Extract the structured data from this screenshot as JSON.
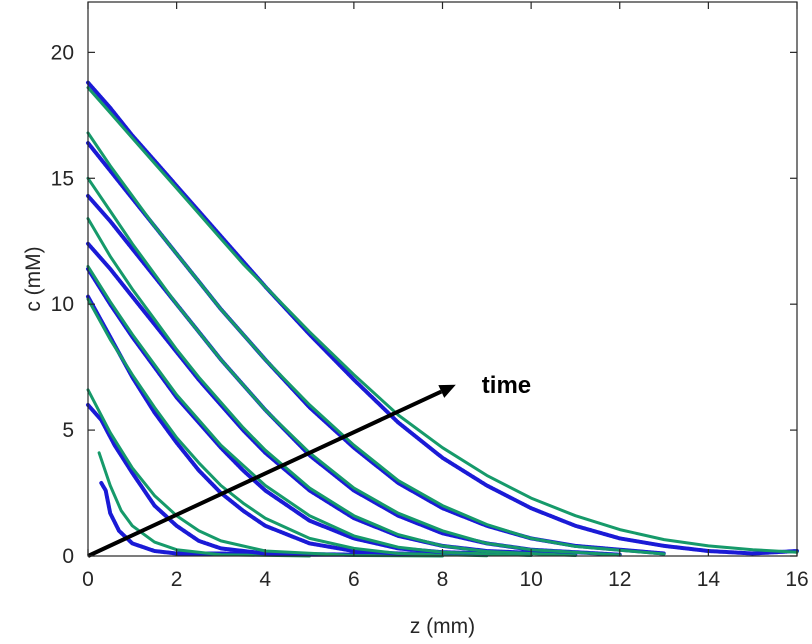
{
  "chart_data": {
    "type": "line",
    "title": "",
    "xlabel": "z  (mm)",
    "ylabel": "c  (mM)",
    "xlim": [
      0,
      16
    ],
    "ylim": [
      0,
      22
    ],
    "xticks": [
      0,
      2,
      4,
      6,
      8,
      10,
      12,
      14,
      16
    ],
    "yticks": [
      0,
      5,
      10,
      15,
      20
    ],
    "grid": false,
    "colors": {
      "data": "#1a1ad6",
      "fit": "#169a6a",
      "arrow": "#000000"
    },
    "annotation": {
      "text": "time",
      "arrow_from": [
        0,
        0
      ],
      "arrow_to": [
        8.3,
        6.8
      ]
    },
    "series": [
      {
        "kind": "data",
        "values": [
          [
            0.3,
            2.9
          ],
          [
            0.4,
            2.6
          ],
          [
            0.5,
            1.7
          ],
          [
            0.7,
            1.0
          ],
          [
            1.0,
            0.5
          ],
          [
            1.5,
            0.2
          ],
          [
            2.0,
            0.1
          ],
          [
            3.0,
            0.1
          ],
          [
            5.0,
            0.05
          ],
          [
            7.0,
            0.05
          ]
        ]
      },
      {
        "kind": "fit",
        "values": [
          [
            0.25,
            4.1
          ],
          [
            0.5,
            2.8
          ],
          [
            0.75,
            1.8
          ],
          [
            1.0,
            1.2
          ],
          [
            1.5,
            0.55
          ],
          [
            2.0,
            0.25
          ],
          [
            3.0,
            0.05
          ],
          [
            5.0,
            0.0
          ]
        ]
      },
      {
        "kind": "data",
        "values": [
          [
            0.0,
            6.0
          ],
          [
            0.3,
            5.4
          ],
          [
            0.6,
            4.4
          ],
          [
            1.0,
            3.3
          ],
          [
            1.5,
            2.0
          ],
          [
            2.0,
            1.2
          ],
          [
            2.5,
            0.6
          ],
          [
            3.0,
            0.3
          ],
          [
            4.0,
            0.1
          ],
          [
            6.0,
            0.05
          ],
          [
            8.0,
            0.05
          ]
        ]
      },
      {
        "kind": "fit",
        "values": [
          [
            0.0,
            6.6
          ],
          [
            0.5,
            4.9
          ],
          [
            1.0,
            3.5
          ],
          [
            1.5,
            2.4
          ],
          [
            2.0,
            1.6
          ],
          [
            2.5,
            1.0
          ],
          [
            3.0,
            0.6
          ],
          [
            4.0,
            0.2
          ],
          [
            6.0,
            0.02
          ],
          [
            8.0,
            0.0
          ]
        ]
      },
      {
        "kind": "data",
        "values": [
          [
            0.0,
            10.3
          ],
          [
            0.5,
            8.7
          ],
          [
            1.0,
            7.1
          ],
          [
            1.5,
            5.7
          ],
          [
            2.0,
            4.5
          ],
          [
            2.5,
            3.4
          ],
          [
            3.0,
            2.5
          ],
          [
            3.5,
            1.8
          ],
          [
            4.0,
            1.2
          ],
          [
            5.0,
            0.5
          ],
          [
            6.0,
            0.2
          ],
          [
            7.0,
            0.1
          ],
          [
            9.0,
            0.05
          ]
        ]
      },
      {
        "kind": "fit",
        "values": [
          [
            0.0,
            10.2
          ],
          [
            0.5,
            8.6
          ],
          [
            1.0,
            7.2
          ],
          [
            1.5,
            5.9
          ],
          [
            2.0,
            4.7
          ],
          [
            2.5,
            3.7
          ],
          [
            3.0,
            2.8
          ],
          [
            3.5,
            2.1
          ],
          [
            4.0,
            1.5
          ],
          [
            5.0,
            0.7
          ],
          [
            6.0,
            0.3
          ],
          [
            7.0,
            0.1
          ],
          [
            9.0,
            0.01
          ]
        ]
      },
      {
        "kind": "data",
        "values": [
          [
            0.0,
            11.4
          ],
          [
            0.5,
            10.0
          ],
          [
            1.0,
            8.7
          ],
          [
            1.5,
            7.5
          ],
          [
            2.0,
            6.3
          ],
          [
            2.5,
            5.3
          ],
          [
            3.0,
            4.3
          ],
          [
            3.5,
            3.4
          ],
          [
            4.0,
            2.6
          ],
          [
            5.0,
            1.4
          ],
          [
            6.0,
            0.7
          ],
          [
            7.0,
            0.3
          ],
          [
            8.0,
            0.15
          ],
          [
            10.0,
            0.05
          ]
        ]
      },
      {
        "kind": "fit",
        "values": [
          [
            0.0,
            11.5
          ],
          [
            0.5,
            10.1
          ],
          [
            1.0,
            8.8
          ],
          [
            1.5,
            7.6
          ],
          [
            2.0,
            6.4
          ],
          [
            2.5,
            5.4
          ],
          [
            3.0,
            4.4
          ],
          [
            3.5,
            3.6
          ],
          [
            4.0,
            2.8
          ],
          [
            5.0,
            1.6
          ],
          [
            6.0,
            0.8
          ],
          [
            7.0,
            0.35
          ],
          [
            8.0,
            0.15
          ],
          [
            10.0,
            0.02
          ]
        ]
      },
      {
        "kind": "data",
        "values": [
          [
            0.0,
            12.4
          ],
          [
            0.5,
            11.4
          ],
          [
            1.0,
            10.3
          ],
          [
            1.5,
            9.2
          ],
          [
            2.0,
            8.1
          ],
          [
            2.5,
            7.0
          ],
          [
            3.0,
            6.0
          ],
          [
            3.5,
            5.0
          ],
          [
            4.0,
            4.1
          ],
          [
            5.0,
            2.6
          ],
          [
            6.0,
            1.5
          ],
          [
            7.0,
            0.8
          ],
          [
            8.0,
            0.4
          ],
          [
            9.0,
            0.2
          ],
          [
            11.0,
            0.05
          ]
        ]
      },
      {
        "kind": "fit",
        "values": [
          [
            0.0,
            13.4
          ],
          [
            0.5,
            11.9
          ],
          [
            1.0,
            10.6
          ],
          [
            1.5,
            9.4
          ],
          [
            2.0,
            8.2
          ],
          [
            2.5,
            7.1
          ],
          [
            3.0,
            6.1
          ],
          [
            3.5,
            5.1
          ],
          [
            4.0,
            4.2
          ],
          [
            5.0,
            2.7
          ],
          [
            6.0,
            1.6
          ],
          [
            7.0,
            0.85
          ],
          [
            8.0,
            0.4
          ],
          [
            9.0,
            0.18
          ],
          [
            11.0,
            0.02
          ]
        ]
      },
      {
        "kind": "data",
        "values": [
          [
            0.0,
            14.3
          ],
          [
            0.5,
            13.3
          ],
          [
            1.0,
            12.2
          ],
          [
            1.5,
            11.1
          ],
          [
            2.0,
            10.0
          ],
          [
            2.5,
            8.9
          ],
          [
            3.0,
            7.8
          ],
          [
            3.5,
            6.8
          ],
          [
            4.0,
            5.8
          ],
          [
            5.0,
            4.0
          ],
          [
            6.0,
            2.6
          ],
          [
            7.0,
            1.6
          ],
          [
            8.0,
            0.9
          ],
          [
            9.0,
            0.5
          ],
          [
            10.0,
            0.25
          ],
          [
            12.0,
            0.05
          ]
        ]
      },
      {
        "kind": "fit",
        "values": [
          [
            0.0,
            15.0
          ],
          [
            0.5,
            13.7
          ],
          [
            1.0,
            12.4
          ],
          [
            1.5,
            11.2
          ],
          [
            2.0,
            10.0
          ],
          [
            2.5,
            8.9
          ],
          [
            3.0,
            7.8
          ],
          [
            3.5,
            6.8
          ],
          [
            4.0,
            5.8
          ],
          [
            5.0,
            4.1
          ],
          [
            6.0,
            2.7
          ],
          [
            7.0,
            1.7
          ],
          [
            8.0,
            1.0
          ],
          [
            9.0,
            0.5
          ],
          [
            10.0,
            0.25
          ],
          [
            12.0,
            0.04
          ]
        ]
      },
      {
        "kind": "data",
        "values": [
          [
            0.0,
            16.4
          ],
          [
            0.5,
            15.3
          ],
          [
            1.0,
            14.2
          ],
          [
            1.5,
            13.1
          ],
          [
            2.0,
            12.0
          ],
          [
            2.5,
            10.9
          ],
          [
            3.0,
            9.8
          ],
          [
            3.5,
            8.8
          ],
          [
            4.0,
            7.8
          ],
          [
            5.0,
            5.9
          ],
          [
            6.0,
            4.3
          ],
          [
            7.0,
            2.9
          ],
          [
            8.0,
            1.9
          ],
          [
            9.0,
            1.2
          ],
          [
            10.0,
            0.7
          ],
          [
            11.0,
            0.4
          ],
          [
            13.0,
            0.1
          ]
        ]
      },
      {
        "kind": "fit",
        "values": [
          [
            0.0,
            16.8
          ],
          [
            0.5,
            15.5
          ],
          [
            1.0,
            14.3
          ],
          [
            1.5,
            13.1
          ],
          [
            2.0,
            12.0
          ],
          [
            2.5,
            10.9
          ],
          [
            3.0,
            9.8
          ],
          [
            3.5,
            8.8
          ],
          [
            4.0,
            7.8
          ],
          [
            5.0,
            6.0
          ],
          [
            6.0,
            4.4
          ],
          [
            7.0,
            3.0
          ],
          [
            8.0,
            2.0
          ],
          [
            9.0,
            1.25
          ],
          [
            10.0,
            0.7
          ],
          [
            11.0,
            0.38
          ],
          [
            13.0,
            0.08
          ]
        ]
      },
      {
        "kind": "data",
        "values": [
          [
            0.0,
            18.8
          ],
          [
            0.5,
            17.8
          ],
          [
            1.0,
            16.7
          ],
          [
            1.5,
            15.7
          ],
          [
            2.0,
            14.7
          ],
          [
            2.5,
            13.7
          ],
          [
            3.0,
            12.7
          ],
          [
            3.5,
            11.7
          ],
          [
            4.0,
            10.7
          ],
          [
            5.0,
            8.8
          ],
          [
            6.0,
            7.0
          ],
          [
            7.0,
            5.3
          ],
          [
            8.0,
            3.9
          ],
          [
            9.0,
            2.8
          ],
          [
            10.0,
            1.9
          ],
          [
            11.0,
            1.2
          ],
          [
            12.0,
            0.7
          ],
          [
            13.0,
            0.4
          ],
          [
            14.0,
            0.2
          ],
          [
            15.0,
            0.1
          ],
          [
            16.0,
            0.2
          ]
        ]
      },
      {
        "kind": "fit",
        "values": [
          [
            0.0,
            18.6
          ],
          [
            0.5,
            17.6
          ],
          [
            1.0,
            16.6
          ],
          [
            1.5,
            15.6
          ],
          [
            2.0,
            14.6
          ],
          [
            2.5,
            13.6
          ],
          [
            3.0,
            12.6
          ],
          [
            3.5,
            11.6
          ],
          [
            4.0,
            10.7
          ],
          [
            5.0,
            8.9
          ],
          [
            6.0,
            7.2
          ],
          [
            7.0,
            5.6
          ],
          [
            8.0,
            4.3
          ],
          [
            9.0,
            3.2
          ],
          [
            10.0,
            2.3
          ],
          [
            11.0,
            1.6
          ],
          [
            12.0,
            1.05
          ],
          [
            13.0,
            0.65
          ],
          [
            14.0,
            0.4
          ],
          [
            15.0,
            0.25
          ],
          [
            16.0,
            0.15
          ]
        ]
      }
    ]
  }
}
